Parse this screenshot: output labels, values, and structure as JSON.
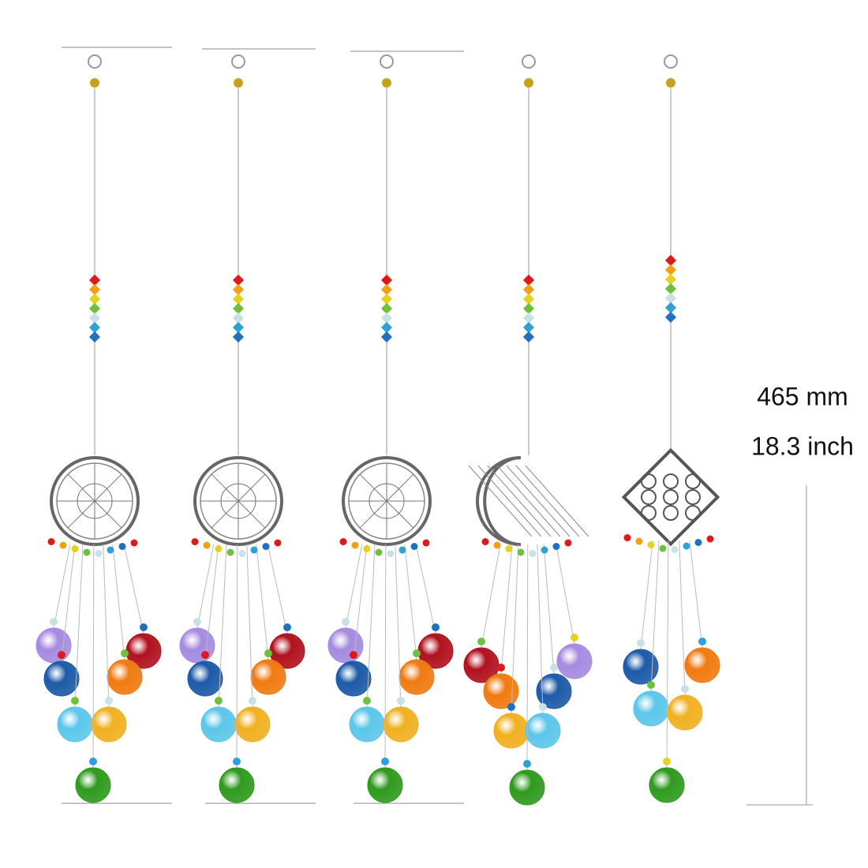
{
  "dimension": {
    "metric": "465 mm",
    "imperial": "18.3 inch"
  }
}
